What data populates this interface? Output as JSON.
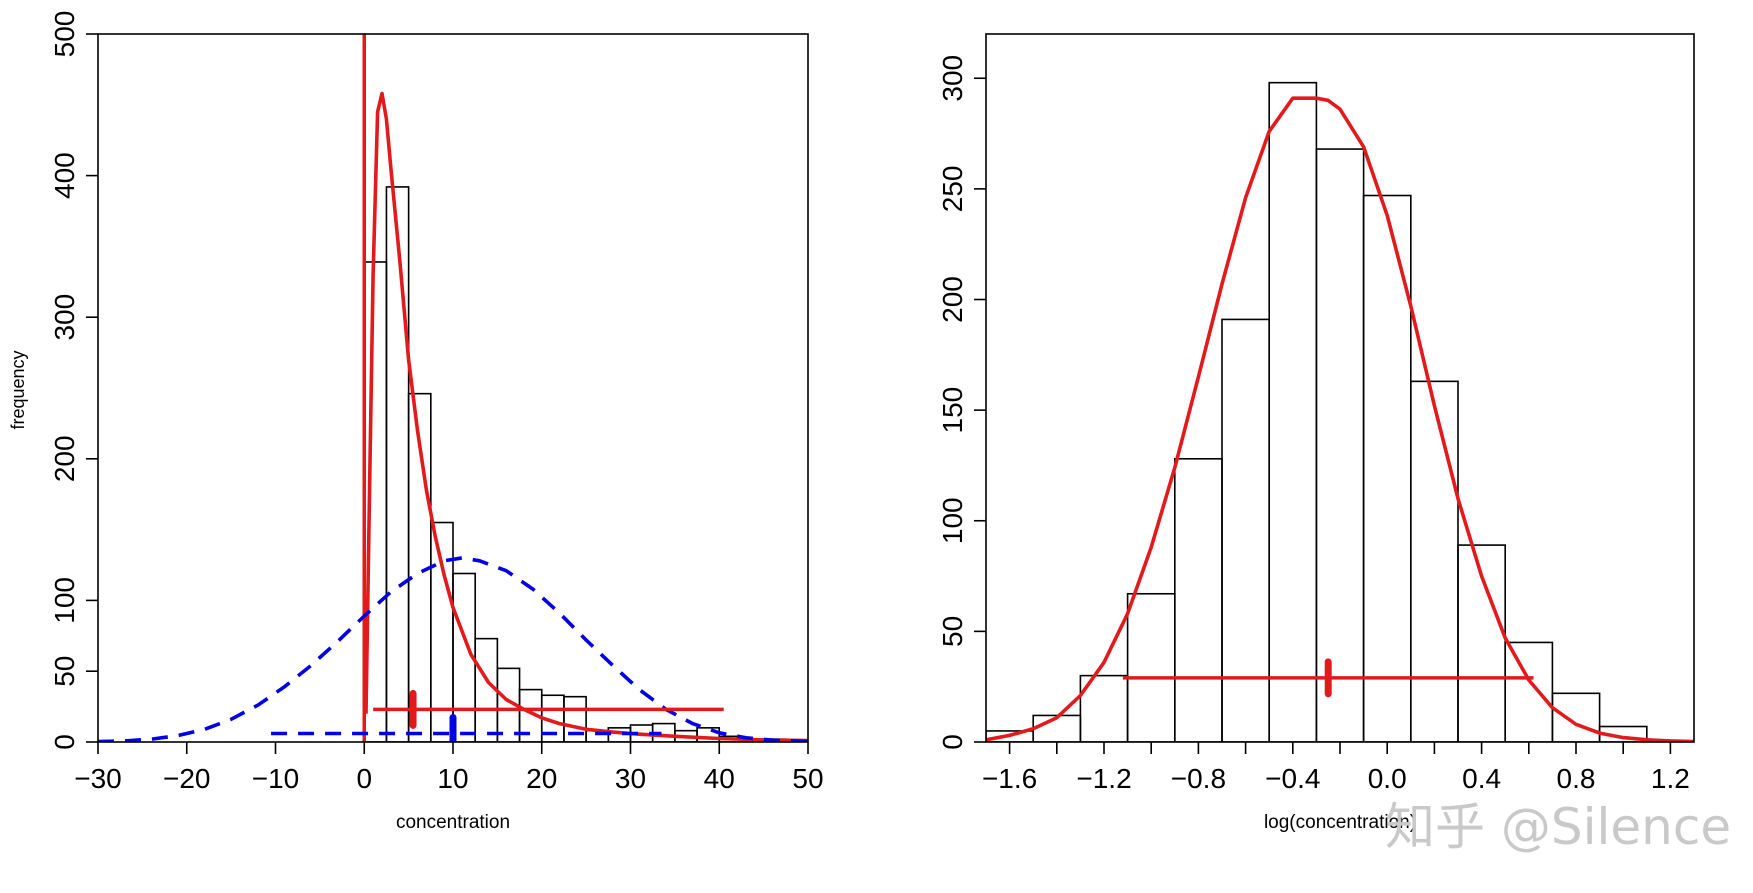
{
  "watermark": "知乎 @Silence",
  "chart_data": [
    {
      "type": "bar",
      "panel": "left",
      "xlabel": "concentration",
      "ylabel": "frequency",
      "xlim": [
        -30,
        50
      ],
      "ylim": [
        0,
        500
      ],
      "xticks": [
        -30,
        -20,
        -10,
        0,
        10,
        20,
        30,
        40,
        50
      ],
      "yticks": [
        0,
        50,
        100,
        200,
        300,
        400,
        500
      ],
      "bin_width": 2.5,
      "bins": [
        {
          "x0": 0.0,
          "count": 339
        },
        {
          "x0": 2.5,
          "count": 392
        },
        {
          "x0": 5.0,
          "count": 246
        },
        {
          "x0": 7.5,
          "count": 155
        },
        {
          "x0": 10.0,
          "count": 119
        },
        {
          "x0": 12.5,
          "count": 73
        },
        {
          "x0": 15.0,
          "count": 52
        },
        {
          "x0": 17.5,
          "count": 37
        },
        {
          "x0": 20.0,
          "count": 33
        },
        {
          "x0": 22.5,
          "count": 32
        },
        {
          "x0": 25.0,
          "count": 8
        },
        {
          "x0": 27.5,
          "count": 10
        },
        {
          "x0": 30.0,
          "count": 12
        },
        {
          "x0": 32.5,
          "count": 13
        },
        {
          "x0": 35.0,
          "count": 8
        },
        {
          "x0": 37.5,
          "count": 10
        },
        {
          "x0": 40.0,
          "count": 4
        },
        {
          "x0": 42.5,
          "count": 2
        },
        {
          "x0": 45.0,
          "count": 2
        },
        {
          "x0": 47.5,
          "count": 1
        }
      ],
      "series": [
        {
          "style": "solid",
          "color": "#e31a1c",
          "x": [
            0.2,
            0.6,
            1.0,
            1.5,
            2.0,
            2.5,
            3.0,
            4.0,
            5.0,
            6.0,
            7.0,
            8.0,
            9.0,
            10.0,
            12.0,
            14.0,
            16.0,
            18.0,
            20.0,
            22.0,
            25.0,
            28.0,
            31.0,
            35.0,
            40.0,
            45.0,
            50.0
          ],
          "y": [
            20,
            180,
            330,
            445,
            458,
            440,
            405,
            340,
            270,
            220,
            178,
            145,
            118,
            95,
            62,
            42,
            30,
            23,
            17,
            13,
            9,
            7,
            5.5,
            4,
            2.5,
            1.5,
            1
          ]
        },
        {
          "style": "dashed",
          "color": "#0000e6",
          "x": [
            -30,
            -27,
            -24,
            -21,
            -18,
            -15,
            -12,
            -9,
            -6,
            -3,
            0,
            3,
            6,
            9,
            11,
            13,
            16,
            19,
            22,
            25,
            28,
            31,
            34,
            37,
            40,
            43,
            46,
            50
          ],
          "y": [
            0.3,
            0.8,
            2,
            4.5,
            9,
            16,
            26,
            39,
            54,
            71,
            89,
            106,
            119,
            128,
            130,
            128,
            121,
            108,
            91,
            72,
            54,
            37,
            23,
            13,
            6.5,
            3,
            1.3,
            0.4
          ]
        }
      ],
      "intervals": [
        {
          "color": "#e31a1c",
          "style": "solid",
          "from": 1,
          "to": 40.5,
          "y": 23,
          "marker_x": 5.5
        },
        {
          "color": "#0000e6",
          "style": "dashed",
          "from": -10.5,
          "to": 33.5,
          "y": 6,
          "marker_x": 10
        }
      ],
      "vertical_line": {
        "x": 0,
        "color": "#e31a1c"
      }
    },
    {
      "type": "bar",
      "panel": "right",
      "xlabel": "log(concentration)",
      "ylabel": "",
      "xlim": [
        -1.7,
        1.3
      ],
      "ylim": [
        0,
        320
      ],
      "xticks": [
        -1.6,
        -1.2,
        -0.8,
        -0.4,
        0.0,
        0.4,
        0.8,
        1.2
      ],
      "yticks": [
        0,
        50,
        100,
        150,
        200,
        250,
        300
      ],
      "bin_width": 0.2,
      "bins": [
        {
          "x0": -1.7,
          "count": 5
        },
        {
          "x0": -1.5,
          "count": 12
        },
        {
          "x0": -1.3,
          "count": 30
        },
        {
          "x0": -1.1,
          "count": 67
        },
        {
          "x0": -0.9,
          "count": 128
        },
        {
          "x0": -0.7,
          "count": 191
        },
        {
          "x0": -0.5,
          "count": 298
        },
        {
          "x0": -0.3,
          "count": 268
        },
        {
          "x0": -0.1,
          "count": 247
        },
        {
          "x0": 0.1,
          "count": 163
        },
        {
          "x0": 0.3,
          "count": 89
        },
        {
          "x0": 0.5,
          "count": 45
        },
        {
          "x0": 0.7,
          "count": 22
        },
        {
          "x0": 0.9,
          "count": 7
        }
      ],
      "series": [
        {
          "style": "solid",
          "color": "#e31a1c",
          "x": [
            -1.7,
            -1.6,
            -1.5,
            -1.4,
            -1.3,
            -1.2,
            -1.1,
            -1.0,
            -0.9,
            -0.8,
            -0.7,
            -0.6,
            -0.5,
            -0.4,
            -0.3,
            -0.25,
            -0.2,
            -0.1,
            0.0,
            0.1,
            0.2,
            0.3,
            0.4,
            0.5,
            0.6,
            0.7,
            0.8,
            0.9,
            1.0,
            1.1,
            1.2,
            1.3
          ],
          "y": [
            1,
            3,
            6,
            11,
            21,
            36,
            58,
            88,
            124,
            165,
            207,
            246,
            276,
            291,
            291,
            290,
            286,
            269,
            238,
            197,
            152,
            110,
            75,
            47,
            28,
            15.5,
            8,
            4,
            2,
            1,
            0.5,
            0.2
          ]
        }
      ],
      "intervals": [
        {
          "color": "#e31a1c",
          "style": "solid",
          "from": -1.12,
          "to": 0.62,
          "y": 29,
          "marker_x": -0.25
        }
      ]
    }
  ]
}
